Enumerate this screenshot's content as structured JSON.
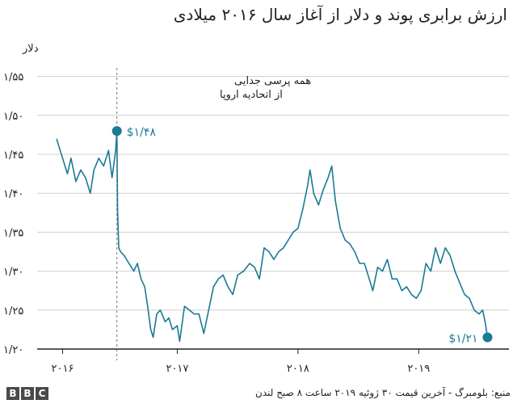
{
  "title": "ارزش برابری پوند و دلار از آغاز سال ۲۰۱۶ میلادی",
  "footer": {
    "logo": [
      "B",
      "B",
      "C"
    ],
    "source": "منبع: بلومبرگ - آخرین قیمت ۳۰ ژوئیه ۲۰۱۹ ساعت ۸ صبح لندن"
  },
  "colors": {
    "line": "#1b7a94",
    "grid": "#cfcfcf",
    "axis": "#222222",
    "text": "#222222"
  },
  "chart_data": {
    "type": "line",
    "title": "ارزش برابری پوند و دلار از آغاز سال ۲۰۱۶ میلادی",
    "ylabel": "دلار",
    "xlabel": "",
    "ylim": [
      1.2,
      1.57
    ],
    "xlim": [
      2016.0,
      2019.58
    ],
    "grid": "horizontal",
    "yticks": [
      {
        "v": 1.2,
        "label": "۱/۲۰"
      },
      {
        "v": 1.25,
        "label": "۱/۲۵"
      },
      {
        "v": 1.3,
        "label": "۱/۳۰"
      },
      {
        "v": 1.35,
        "label": "۱/۳۵"
      },
      {
        "v": 1.4,
        "label": "۱/۴۰"
      },
      {
        "v": 1.45,
        "label": "۱/۴۵"
      },
      {
        "v": 1.5,
        "label": "۱/۵۰"
      },
      {
        "v": 1.55,
        "label": "۱/۵۵"
      }
    ],
    "xticks": [
      {
        "v": 2016.05,
        "label": "۲۰۱۶"
      },
      {
        "v": 2017.0,
        "label": "۲۰۱۷"
      },
      {
        "v": 2018.0,
        "label": "۲۰۱۸"
      },
      {
        "v": 2019.0,
        "label": "۲۰۱۹"
      }
    ],
    "series": [
      {
        "points": [
          [
            2016.0,
            1.47
          ],
          [
            2016.03,
            1.455
          ],
          [
            2016.06,
            1.44
          ],
          [
            2016.09,
            1.425
          ],
          [
            2016.12,
            1.445
          ],
          [
            2016.16,
            1.415
          ],
          [
            2016.2,
            1.43
          ],
          [
            2016.24,
            1.42
          ],
          [
            2016.28,
            1.4
          ],
          [
            2016.31,
            1.43
          ],
          [
            2016.35,
            1.445
          ],
          [
            2016.39,
            1.435
          ],
          [
            2016.43,
            1.455
          ],
          [
            2016.46,
            1.42
          ],
          [
            2016.49,
            1.455
          ],
          [
            2016.5,
            1.48
          ],
          [
            2016.505,
            1.38
          ],
          [
            2016.515,
            1.33
          ],
          [
            2016.53,
            1.325
          ],
          [
            2016.56,
            1.32
          ],
          [
            2016.6,
            1.31
          ],
          [
            2016.64,
            1.3
          ],
          [
            2016.67,
            1.31
          ],
          [
            2016.7,
            1.29
          ],
          [
            2016.73,
            1.28
          ],
          [
            2016.75,
            1.26
          ],
          [
            2016.78,
            1.225
          ],
          [
            2016.8,
            1.215
          ],
          [
            2016.83,
            1.245
          ],
          [
            2016.86,
            1.25
          ],
          [
            2016.9,
            1.235
          ],
          [
            2016.93,
            1.24
          ],
          [
            2016.96,
            1.225
          ],
          [
            2017.0,
            1.23
          ],
          [
            2017.02,
            1.21
          ],
          [
            2017.06,
            1.255
          ],
          [
            2017.1,
            1.25
          ],
          [
            2017.14,
            1.245
          ],
          [
            2017.18,
            1.245
          ],
          [
            2017.22,
            1.22
          ],
          [
            2017.26,
            1.25
          ],
          [
            2017.3,
            1.28
          ],
          [
            2017.34,
            1.29
          ],
          [
            2017.38,
            1.295
          ],
          [
            2017.42,
            1.28
          ],
          [
            2017.46,
            1.27
          ],
          [
            2017.5,
            1.295
          ],
          [
            2017.55,
            1.3
          ],
          [
            2017.6,
            1.31
          ],
          [
            2017.64,
            1.305
          ],
          [
            2017.68,
            1.29
          ],
          [
            2017.72,
            1.33
          ],
          [
            2017.76,
            1.325
          ],
          [
            2017.8,
            1.315
          ],
          [
            2017.84,
            1.325
          ],
          [
            2017.88,
            1.33
          ],
          [
            2017.92,
            1.34
          ],
          [
            2017.96,
            1.35
          ],
          [
            2018.0,
            1.355
          ],
          [
            2018.04,
            1.38
          ],
          [
            2018.08,
            1.41
          ],
          [
            2018.1,
            1.43
          ],
          [
            2018.13,
            1.4
          ],
          [
            2018.17,
            1.385
          ],
          [
            2018.21,
            1.405
          ],
          [
            2018.25,
            1.42
          ],
          [
            2018.28,
            1.435
          ],
          [
            2018.31,
            1.39
          ],
          [
            2018.35,
            1.355
          ],
          [
            2018.39,
            1.34
          ],
          [
            2018.43,
            1.335
          ],
          [
            2018.47,
            1.325
          ],
          [
            2018.51,
            1.31
          ],
          [
            2018.55,
            1.31
          ],
          [
            2018.59,
            1.29
          ],
          [
            2018.62,
            1.275
          ],
          [
            2018.66,
            1.305
          ],
          [
            2018.7,
            1.3
          ],
          [
            2018.74,
            1.315
          ],
          [
            2018.78,
            1.29
          ],
          [
            2018.82,
            1.29
          ],
          [
            2018.86,
            1.275
          ],
          [
            2018.9,
            1.28
          ],
          [
            2018.94,
            1.27
          ],
          [
            2018.98,
            1.265
          ],
          [
            2019.02,
            1.275
          ],
          [
            2019.06,
            1.31
          ],
          [
            2019.1,
            1.3
          ],
          [
            2019.14,
            1.33
          ],
          [
            2019.18,
            1.31
          ],
          [
            2019.22,
            1.33
          ],
          [
            2019.26,
            1.32
          ],
          [
            2019.3,
            1.3
          ],
          [
            2019.34,
            1.285
          ],
          [
            2019.38,
            1.27
          ],
          [
            2019.42,
            1.265
          ],
          [
            2019.46,
            1.25
          ],
          [
            2019.5,
            1.245
          ],
          [
            2019.53,
            1.25
          ],
          [
            2019.55,
            1.235
          ],
          [
            2019.57,
            1.215
          ]
        ]
      }
    ],
    "annotations": [
      {
        "x": 2016.5,
        "y": 1.48,
        "label": "$۱/۴۸"
      },
      {
        "x": 2019.57,
        "y": 1.215,
        "label": "$۱/۲۱"
      }
    ],
    "event": {
      "x": 2016.5,
      "label_line1": "همه پرسی جدایی",
      "label_line2": "از اتحادیه اروپا"
    }
  }
}
